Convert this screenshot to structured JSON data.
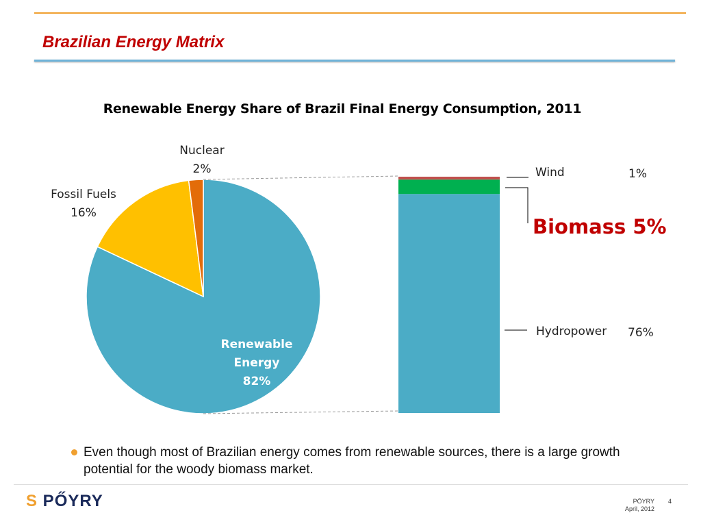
{
  "header": {
    "title": "Brazilian Energy Matrix"
  },
  "chart_data": [
    {
      "type": "pie",
      "title": "Renewable Energy Share of Brazil Final Energy Consumption, 2011",
      "slices": [
        {
          "name": "Renewable Energy",
          "value": 82,
          "label": "82%",
          "color": "#4bacc6"
        },
        {
          "name": "Fossil Fuels",
          "value": 16,
          "label": "16%",
          "color": "#ffc000"
        },
        {
          "name": "Nuclear",
          "value": 2,
          "label": "2%",
          "color": "#e36c09"
        }
      ]
    },
    {
      "type": "bar",
      "stacked": true,
      "segments": [
        {
          "name": "Hydropower",
          "value": 76,
          "label": "76%",
          "color": "#4bacc6"
        },
        {
          "name": "Biomass",
          "value": 5,
          "label": "Biomass 5%",
          "color": "#00b050"
        },
        {
          "name": "Wind",
          "value": 1,
          "label": "1%",
          "color": "#c0504d"
        }
      ]
    }
  ],
  "bullet": "Even though most of Brazilian energy comes from renewable sources, there is a large growth potential for the woody biomass market.",
  "footer": {
    "logo": "PŐYRY",
    "company": "PÖYRY",
    "date": "April, 2012",
    "page": "4"
  }
}
